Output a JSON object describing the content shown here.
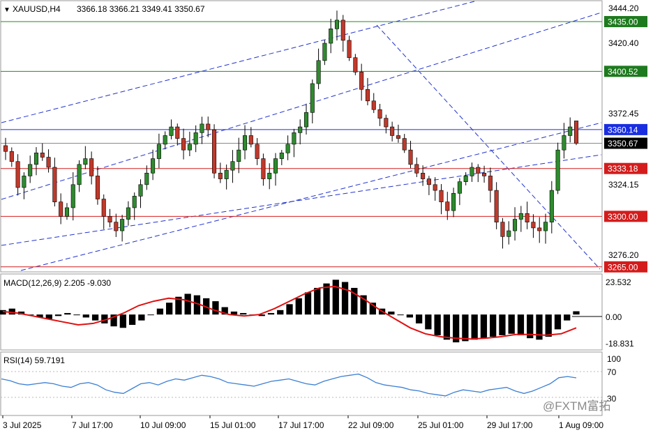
{
  "header": {
    "symbol": "XAUUSD,H4",
    "ohlc": "3366.18 3366.21 3349.41 3350.67"
  },
  "price_axis": {
    "ticks": [
      "3444.20",
      "3420.40",
      "3372.45",
      "3324.15",
      "3276.20"
    ]
  },
  "price_labels": [
    {
      "text": "3435.00",
      "value": 3435.0,
      "bg": "#1e7a1e",
      "fg": "#ffffff",
      "line": "#1e8c1e"
    },
    {
      "text": "3400.52",
      "value": 3400.52,
      "bg": "#1e7a1e",
      "fg": "#ffffff",
      "line": "#1e8c1e"
    },
    {
      "text": "3360.14",
      "value": 3360.14,
      "bg": "#1a2ee0",
      "fg": "#ffffff",
      "line": "#1a2ee0"
    },
    {
      "text": "3350.67",
      "value": 3350.67,
      "bg": "#000000",
      "fg": "#ffffff",
      "line": "#8a8a8a"
    },
    {
      "text": "3333.18",
      "value": 3333.18,
      "bg": "#d41c1c",
      "fg": "#ffffff",
      "line": "#d41c1c"
    },
    {
      "text": "3300.00",
      "value": 3300.0,
      "bg": "#d41c1c",
      "fg": "#ffffff",
      "line": "#d41c1c"
    },
    {
      "text": "3265.00",
      "value": 3265.0,
      "bg": "#d41c1c",
      "fg": "#ffffff",
      "line": "#d41c1c"
    }
  ],
  "macd": {
    "label": "MACD(12,26,9) 2.205 -9.030",
    "ticks": [
      "23.532",
      "0.00",
      "-18.831"
    ]
  },
  "rsi": {
    "label": "RSI(14) 59.7191",
    "ticks": [
      "100",
      "70",
      "30"
    ]
  },
  "time_axis": {
    "ticks": [
      "3 Jul 2025",
      "7 Jul 17:00",
      "10 Jul 09:00",
      "15 Jul 01:00",
      "17 Jul 17:00",
      "22 Jul 09:00",
      "25 Jul 01:00",
      "29 Jul 17:00",
      "1 Aug 09:00"
    ]
  },
  "watermark": "@FXTM富拓",
  "colors": {
    "bull": "#2e8b2e",
    "bear": "#c0392b",
    "signal": "#e01010",
    "rsi_line": "#3b7fd4",
    "channel": "#2233cc"
  },
  "chart_data": [
    {
      "type": "candlestick",
      "title": "XAUUSD,H4",
      "ylim": [
        3262,
        3449
      ],
      "x_ticks": [
        "3 Jul 2025",
        "7 Jul 17:00",
        "10 Jul 09:00",
        "15 Jul 01:00",
        "17 Jul 17:00",
        "22 Jul 09:00",
        "25 Jul 01:00",
        "29 Jul 17:00",
        "1 Aug 09:00"
      ],
      "close_path": [
        3345,
        3338,
        3320,
        3328,
        3336,
        3344,
        3341,
        3334,
        3310,
        3300,
        3306,
        3322,
        3336,
        3340,
        3328,
        3312,
        3300,
        3296,
        3290,
        3298,
        3306,
        3314,
        3322,
        3330,
        3340,
        3350,
        3356,
        3362,
        3354,
        3346,
        3350,
        3358,
        3364,
        3360,
        3330,
        3326,
        3332,
        3338,
        3346,
        3356,
        3350,
        3340,
        3326,
        3330,
        3340,
        3344,
        3350,
        3358,
        3362,
        3372,
        3392,
        3408,
        3420,
        3430,
        3436,
        3422,
        3410,
        3400,
        3388,
        3380,
        3374,
        3368,
        3362,
        3356,
        3354,
        3346,
        3336,
        3330,
        3326,
        3322,
        3318,
        3310,
        3304,
        3316,
        3324,
        3328,
        3334,
        3330,
        3328,
        3318,
        3296,
        3286,
        3290,
        3298,
        3302,
        3296,
        3292,
        3290,
        3296,
        3318,
        3346,
        3356,
        3362,
        3350.67
      ],
      "open": 3366.18,
      "high": 3366.21,
      "low": 3349.41,
      "close": 3350.67,
      "horizontal_levels": [
        3435.0,
        3400.52,
        3360.14,
        3350.67,
        3333.18,
        3300.0,
        3265.0
      ]
    },
    {
      "type": "bar",
      "title": "MACD(12,26,9) 2.205 -9.030",
      "ylim": [
        -23,
        26
      ],
      "y_ticks": [
        23.532,
        0.0,
        -18.831
      ],
      "macd": [
        3,
        4,
        2,
        0,
        -2,
        -3,
        -1,
        1,
        0,
        -2,
        -4,
        -6,
        -8,
        -9,
        -7,
        -4,
        0,
        4,
        8,
        12,
        14,
        13,
        11,
        9,
        5,
        2,
        1,
        0,
        -1,
        1,
        3,
        7,
        11,
        15,
        18,
        21,
        23.5,
        22,
        18,
        13,
        8,
        4,
        2,
        0,
        -2,
        -6,
        -10,
        -14,
        -17,
        -18.8,
        -18,
        -17,
        -16,
        -15,
        -14,
        -13,
        -14,
        -16,
        -17,
        -15,
        -10,
        -4,
        2.205
      ],
      "signal": [
        2,
        1,
        -1,
        -3,
        -5,
        -7,
        -6,
        -3,
        1,
        6,
        9,
        11,
        10,
        7,
        3,
        0,
        -1,
        0,
        4,
        9,
        14,
        18,
        19,
        16,
        10,
        3,
        -3,
        -9,
        -13,
        -15,
        -16,
        -16.5,
        -16,
        -15,
        -13.5,
        -13.5,
        -14,
        -13,
        -9.03
      ]
    },
    {
      "type": "line",
      "title": "RSI(14) 59.7191",
      "ylim": [
        0,
        100
      ],
      "y_ticks": [
        100,
        70,
        30
      ],
      "levels": [
        70,
        30
      ],
      "values": [
        58,
        55,
        50,
        48,
        50,
        52,
        50,
        46,
        44,
        50,
        52,
        48,
        40,
        36,
        34,
        42,
        50,
        52,
        48,
        54,
        58,
        56,
        60,
        64,
        62,
        58,
        52,
        50,
        48,
        46,
        50,
        54,
        56,
        58,
        54,
        50,
        48,
        54,
        58,
        62,
        64,
        66,
        60,
        52,
        48,
        46,
        44,
        40,
        38,
        34,
        32,
        30,
        36,
        40,
        38,
        36,
        40,
        42,
        44,
        38,
        34,
        38,
        44,
        50,
        60,
        62,
        59.7191
      ]
    }
  ]
}
